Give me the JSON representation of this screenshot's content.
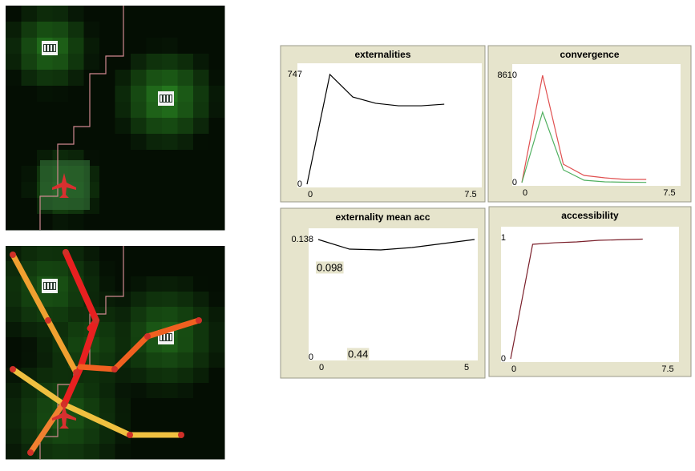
{
  "plots": [
    {
      "title": "externalities",
      "xlim": [
        0,
        7.5
      ],
      "ylim": [
        0,
        747
      ],
      "xticks": [
        0,
        7.5
      ],
      "yticks": [
        0,
        747
      ],
      "series": [
        {
          "color": "#000000",
          "x": [
            0,
            1,
            2,
            3,
            4,
            5,
            6
          ],
          "values": [
            0,
            747,
            594,
            551,
            534,
            534,
            545
          ]
        }
      ]
    },
    {
      "title": "convergence",
      "xlim": [
        0,
        7.5
      ],
      "ylim": [
        0,
        8610
      ],
      "xticks": [
        0,
        7.5
      ],
      "yticks": [
        0,
        8610
      ],
      "series": [
        {
          "color": "#e05050",
          "x": [
            0,
            1,
            2,
            3,
            4,
            5,
            6
          ],
          "values": [
            0,
            8610,
            1478,
            578,
            385,
            257,
            257
          ]
        },
        {
          "color": "#50b060",
          "x": [
            0,
            1,
            2,
            3,
            4,
            5,
            6
          ],
          "values": [
            0,
            5654,
            1028,
            193,
            64,
            30,
            20
          ]
        }
      ]
    },
    {
      "title": "externality mean acc",
      "xlim": [
        0,
        5
      ],
      "ylim": [
        0,
        0.138
      ],
      "xticks": [
        0,
        5
      ],
      "yticks": [
        0,
        0.138
      ],
      "series": [
        {
          "color": "#000000",
          "x": [
            0,
            1,
            2,
            3,
            4,
            5
          ],
          "values": [
            0.138,
            0.1267,
            0.1258,
            0.1286,
            0.1333,
            0.138
          ]
        }
      ],
      "annotations": [
        "0.098",
        "0.44"
      ]
    },
    {
      "title": "accessibility",
      "xlim": [
        0,
        7.5
      ],
      "ylim": [
        0,
        1
      ],
      "xticks": [
        0,
        7.5
      ],
      "yticks": [
        0,
        1
      ],
      "series": [
        {
          "color": "#7a1f2a",
          "x": [
            0,
            1,
            2,
            3,
            4,
            5,
            6
          ],
          "values": [
            0,
            0.947,
            0.96,
            0.967,
            0.98,
            0.985,
            0.99
          ]
        }
      ]
    }
  ]
}
